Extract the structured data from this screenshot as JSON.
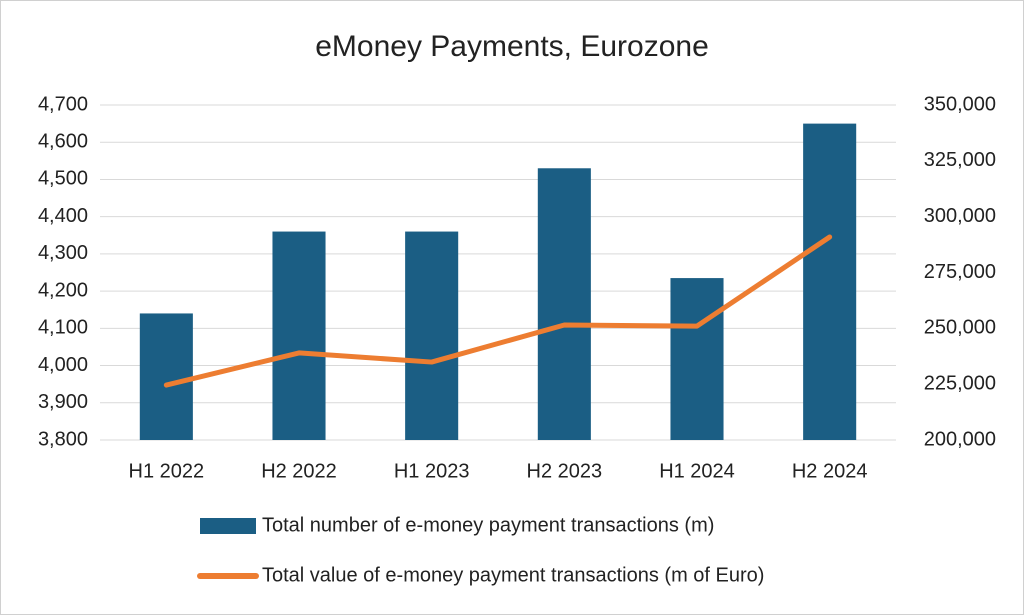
{
  "chart_data": {
    "type": "bar-line",
    "title": "eMoney Payments, Eurozone",
    "categories": [
      "H1 2022",
      "H2 2022",
      "H1 2023",
      "H2 2023",
      "H1 2024",
      "H2 2024"
    ],
    "series": [
      {
        "name": "Total number of e-money payment transactions (m)",
        "type": "bar",
        "color": "#1b5e84",
        "values": [
          4140,
          4360,
          4360,
          4530,
          4235,
          4650
        ]
      },
      {
        "name": "Total value of e-money payment transactions (m of Euro)",
        "type": "line",
        "axis": "y2",
        "color": "#ed7d31",
        "values": [
          224600,
          239000,
          234900,
          251500,
          251000,
          290900
        ]
      }
    ],
    "ylim": [
      3800,
      4700
    ],
    "yticks": [
      {
        "value": 3800,
        "label": "3,800"
      },
      {
        "value": 3900,
        "label": "3,900"
      },
      {
        "value": 4000,
        "label": "4,000"
      },
      {
        "value": 4100,
        "label": "4,100"
      },
      {
        "value": 4200,
        "label": "4,200"
      },
      {
        "value": 4300,
        "label": "4,300"
      },
      {
        "value": 4400,
        "label": "4,400"
      },
      {
        "value": 4500,
        "label": "4,500"
      },
      {
        "value": 4600,
        "label": "4,600"
      },
      {
        "value": 4700,
        "label": "4,700"
      }
    ],
    "y2lim": [
      200000,
      350000
    ],
    "y2ticks": [
      {
        "value": 200000,
        "label": "200,000"
      },
      {
        "value": 225000,
        "label": "225,000"
      },
      {
        "value": 250000,
        "label": "250,000"
      },
      {
        "value": 275000,
        "label": "275,000"
      },
      {
        "value": 300000,
        "label": "300,000"
      },
      {
        "value": 325000,
        "label": "325,000"
      },
      {
        "value": 350000,
        "label": "350,000"
      }
    ],
    "grid": true,
    "legend": "bottom"
  }
}
